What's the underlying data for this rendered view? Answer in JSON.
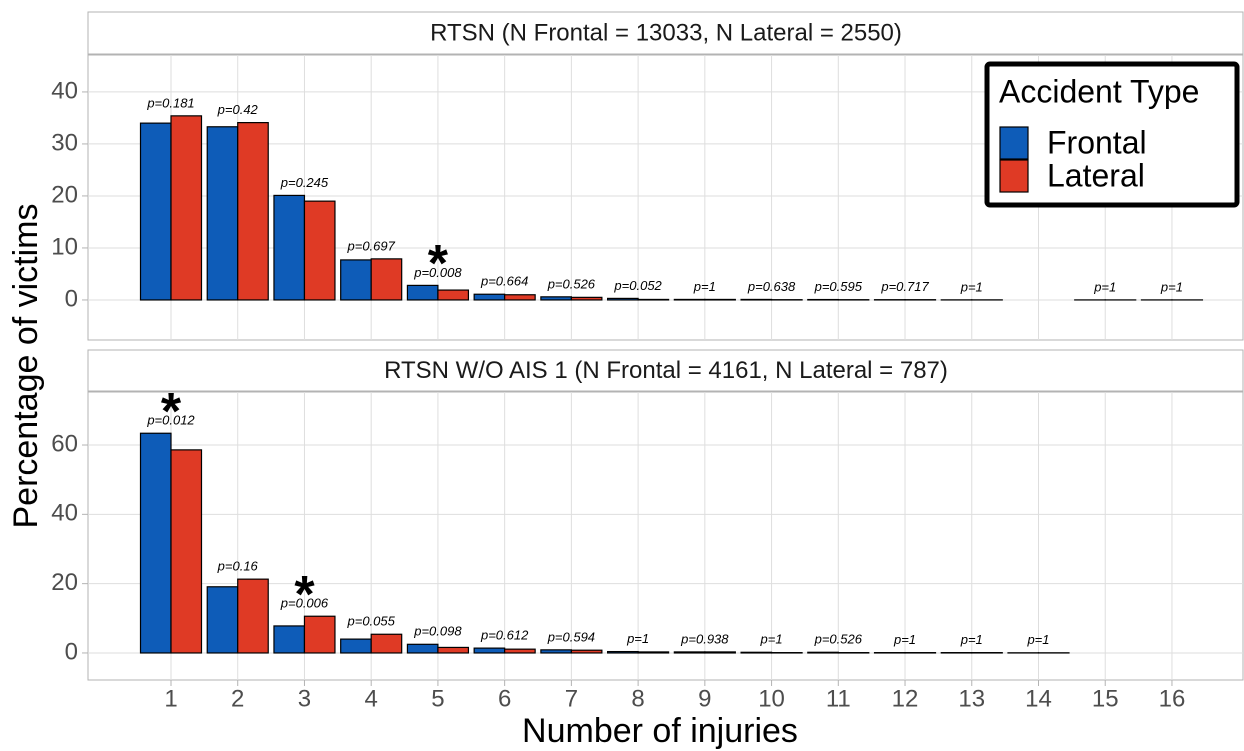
{
  "chart_data": [
    {
      "type": "bar",
      "title": "RTSN (N Frontal = 13033, N Lateral = 2550)",
      "ylabel": "Percentage of victims",
      "legend_title": "Accident Type",
      "legend": "top-right",
      "grid": true,
      "series": [
        {
          "name": "Frontal",
          "color": "#0e5cb8",
          "values": [
            34.0,
            33.3,
            20.1,
            7.7,
            2.8,
            1.1,
            0.6,
            0.3,
            0.1,
            0.1,
            0.08,
            0.05,
            0.02,
            null,
            0.01,
            0.01
          ]
        },
        {
          "name": "Lateral",
          "color": "#df3a25",
          "values": [
            35.4,
            34.1,
            19.0,
            7.9,
            1.9,
            1.0,
            0.5,
            0.1,
            0.1,
            0.05,
            0.05,
            0.05,
            0.02,
            null,
            0.01,
            0.01
          ]
        }
      ],
      "annotations": [
        "p=0.181",
        "p=0.42",
        "p=0.245",
        "p=0.697",
        "p=0.008",
        "p=0.664",
        "p=0.526",
        "p=0.052",
        "p=1",
        "p=0.638",
        "p=0.595",
        "p=0.717",
        "p=1",
        null,
        "p=1",
        "p=1"
      ],
      "significance": [
        null,
        null,
        null,
        null,
        "*",
        null,
        null,
        null,
        null,
        null,
        null,
        null,
        null,
        null,
        null,
        null
      ],
      "ylim": [
        -7.7,
        47.1
      ],
      "yticks": [
        0,
        10,
        20,
        30,
        40
      ]
    },
    {
      "type": "bar",
      "title": "RTSN W/O AIS 1 (N Frontal = 4161, N Lateral = 787)",
      "xlabel": "Number of injuries",
      "grid": true,
      "categories": [
        "1",
        "2",
        "3",
        "4",
        "5",
        "6",
        "7",
        "8",
        "9",
        "10",
        "11",
        "12",
        "13",
        "14",
        "15",
        "16"
      ],
      "series": [
        {
          "name": "Frontal",
          "color": "#0e5cb8",
          "values": [
            63.4,
            19.1,
            7.8,
            4.0,
            2.5,
            1.4,
            0.9,
            0.4,
            0.3,
            0.2,
            0.2,
            0.1,
            0.1,
            0.05,
            null,
            null
          ]
        },
        {
          "name": "Lateral",
          "color": "#df3a25",
          "values": [
            58.6,
            21.3,
            10.6,
            5.4,
            1.6,
            1.1,
            0.8,
            0.3,
            0.3,
            0.1,
            0.1,
            0.1,
            0.1,
            0.05,
            null,
            null
          ]
        }
      ],
      "annotations": [
        "p=0.012",
        "p=0.16",
        "p=0.006",
        "p=0.055",
        "p=0.098",
        "p=0.612",
        "p=0.594",
        "p=1",
        "p=0.938",
        "p=1",
        "p=0.526",
        "p=1",
        "p=1",
        "p=1",
        null,
        null
      ],
      "significance": [
        "*",
        null,
        "*",
        null,
        null,
        null,
        null,
        null,
        null,
        null,
        null,
        null,
        null,
        null,
        null,
        null
      ],
      "ylim": [
        -7.8,
        75.3
      ],
      "yticks": [
        0,
        20,
        40,
        60
      ]
    }
  ]
}
